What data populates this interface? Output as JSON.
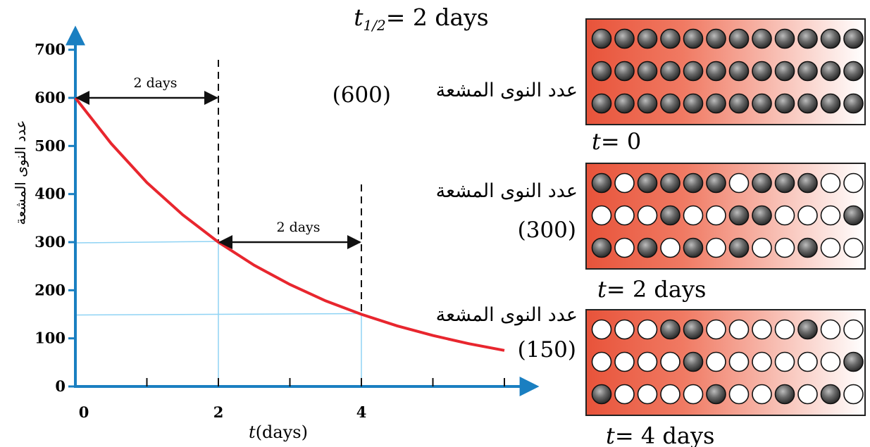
{
  "title": {
    "prefix": "t",
    "subscript": "1/2",
    "suffix": "= 2 days"
  },
  "chart_data": {
    "type": "line",
    "xlabel_italic": "t",
    "xlabel_rest": "(days)",
    "ylabel": "عدد النوى المشعة",
    "xlim": [
      0,
      6.3
    ],
    "ylim": [
      0,
      700
    ],
    "y_ticks": [
      0,
      100,
      200,
      300,
      400,
      500,
      600,
      700
    ],
    "x_tick_labels": [
      0,
      2,
      4
    ],
    "x_minor_ticks": [
      1,
      2,
      3,
      4,
      5,
      6
    ],
    "grid": false,
    "series": [
      {
        "x": [
          0,
          0.5,
          1,
          1.5,
          2,
          2.5,
          3,
          3.5,
          4,
          4.5,
          5,
          5.5,
          6
        ],
        "y": [
          600,
          505,
          424,
          357,
          300,
          252,
          212,
          178,
          150,
          126,
          106,
          89,
          75
        ],
        "color": "#e8262e"
      }
    ],
    "dashed_verticals": [
      2,
      4
    ],
    "reference_lines": [
      {
        "x": 2,
        "y": 300
      },
      {
        "x": 4,
        "y": 150
      }
    ],
    "annotations": [
      {
        "label": "2 days",
        "from": 0,
        "to": 2,
        "y": 600
      },
      {
        "label": "2 days",
        "from": 2,
        "to": 4,
        "y": 300
      }
    ],
    "line_color": "#e8262e",
    "axis_color": "#1a7fc1",
    "guide_color": "#8fd3f4"
  },
  "panels": [
    {
      "time_label": "t",
      "time_value": "= 0",
      "label": "عدد النوى المشعة",
      "count": "(600)",
      "rows": [
        [
          1,
          1,
          1,
          1,
          1,
          1,
          1,
          1,
          1,
          1,
          1,
          1
        ],
        [
          1,
          1,
          1,
          1,
          1,
          1,
          1,
          1,
          1,
          1,
          1,
          1
        ],
        [
          1,
          1,
          1,
          1,
          1,
          1,
          1,
          1,
          1,
          1,
          1,
          1
        ]
      ]
    },
    {
      "time_label": "t",
      "time_value": "= 2 days",
      "label": "عدد النوى المشعة",
      "count": "(300)",
      "rows": [
        [
          1,
          0,
          1,
          1,
          1,
          1,
          0,
          1,
          1,
          1,
          0,
          0
        ],
        [
          0,
          0,
          0,
          1,
          0,
          0,
          1,
          1,
          0,
          0,
          0,
          1
        ],
        [
          1,
          0,
          1,
          0,
          1,
          0,
          1,
          0,
          0,
          1,
          0,
          0
        ]
      ]
    },
    {
      "time_label": "t",
      "time_value": "= 4 days",
      "label": "عدد النوى المشعة",
      "count": "(150)",
      "rows": [
        [
          0,
          0,
          0,
          1,
          1,
          0,
          0,
          0,
          0,
          1,
          0,
          0
        ],
        [
          0,
          0,
          0,
          0,
          1,
          0,
          0,
          0,
          0,
          0,
          0,
          1
        ],
        [
          1,
          0,
          0,
          0,
          0,
          1,
          0,
          0,
          1,
          0,
          1,
          0
        ]
      ]
    }
  ],
  "colors": {
    "panel_left": "#e8533a",
    "panel_right": "#ffffff",
    "nucleus_dark": "#555555",
    "nucleus_light": "#ffffff"
  }
}
